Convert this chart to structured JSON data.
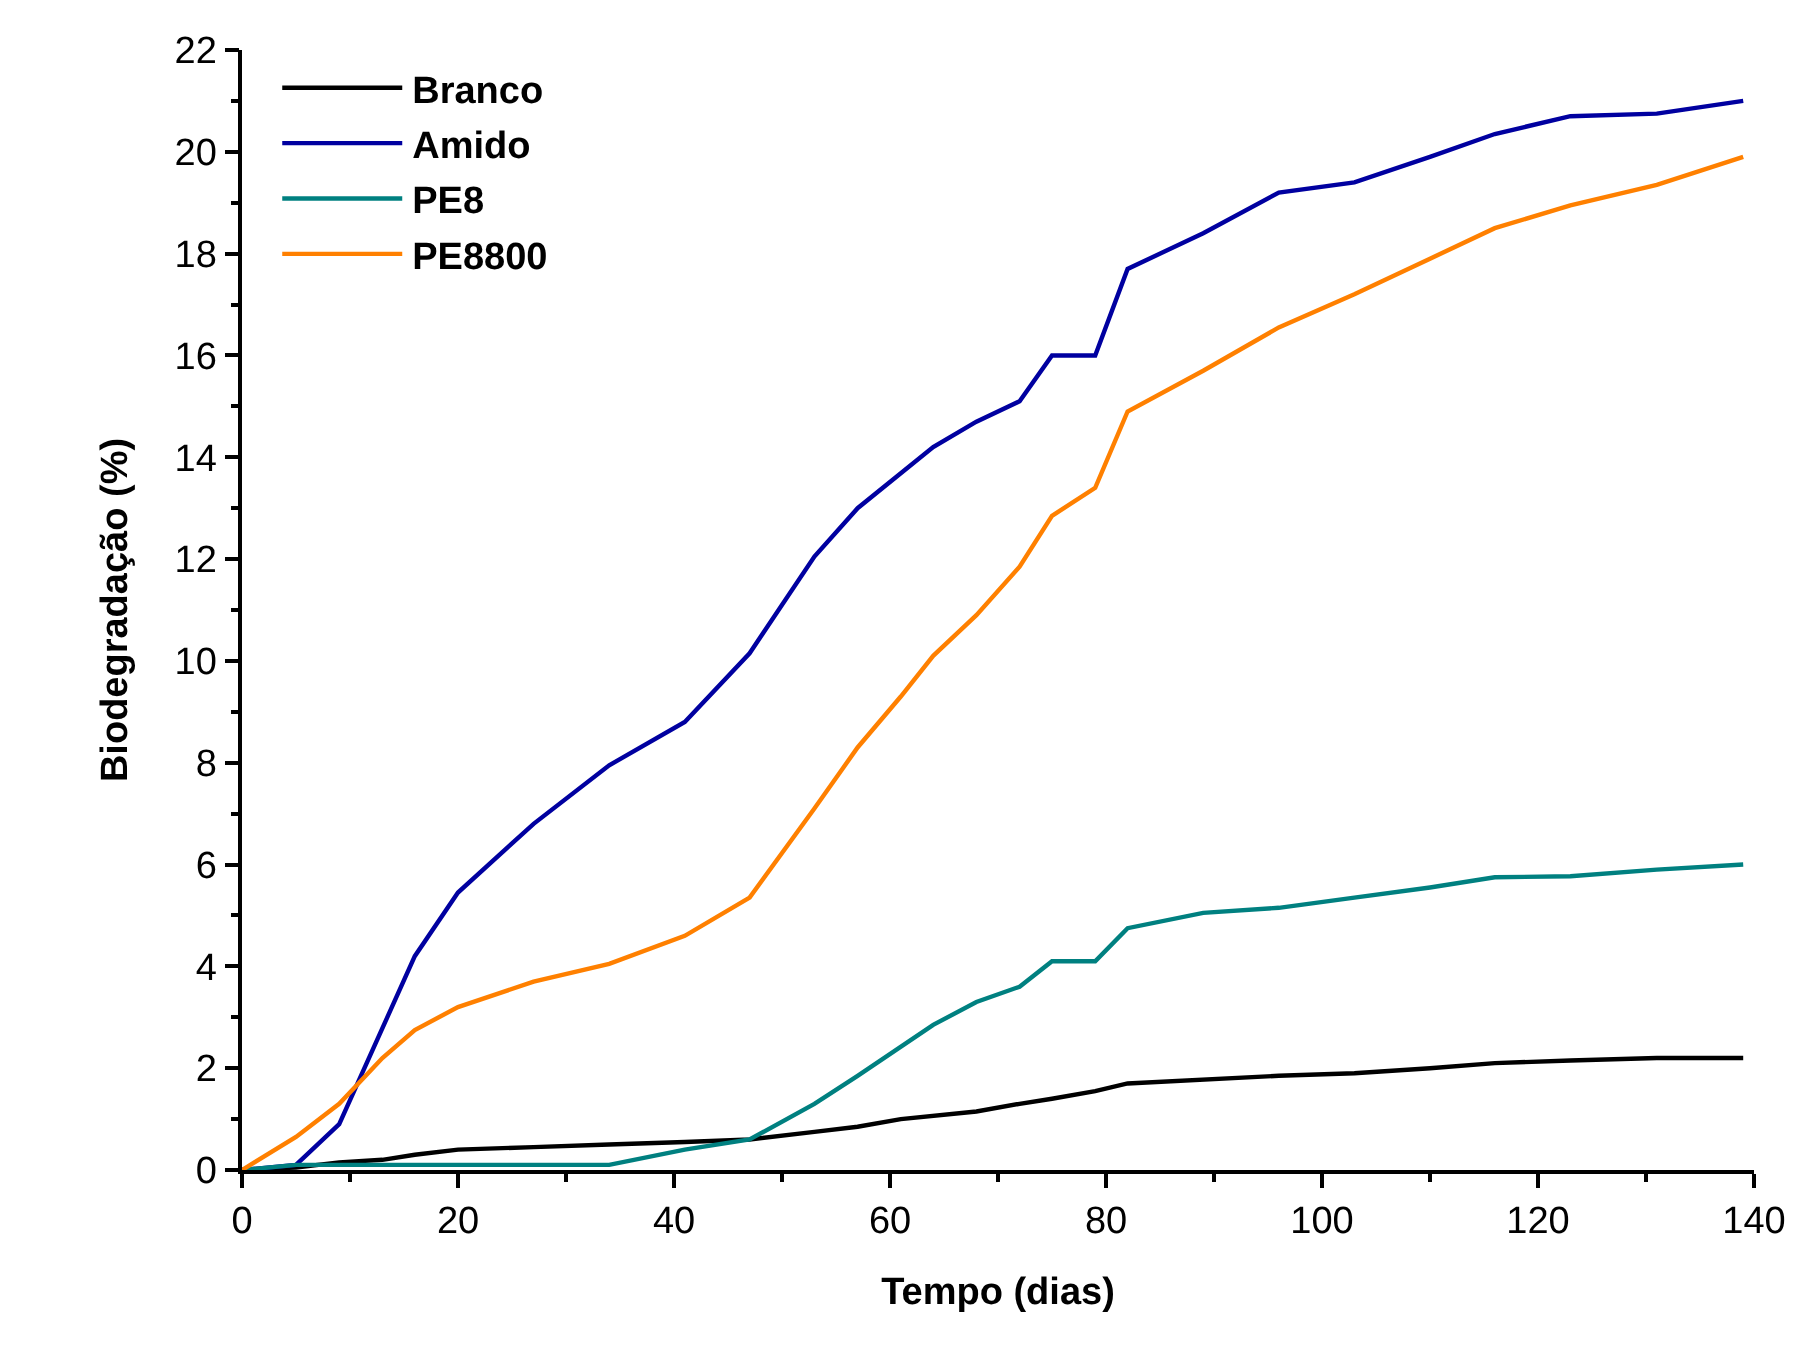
{
  "chart_data": {
    "type": "line",
    "xlabel": "Tempo (dias)",
    "ylabel": "Biodegradação (%)",
    "xlim": [
      0,
      140
    ],
    "ylim": [
      0,
      22
    ],
    "xticks": [
      0,
      {
        "value": 10,
        "label": null
      },
      20,
      {
        "value": 30,
        "label": null
      },
      40,
      {
        "value": 50,
        "label": null
      },
      60,
      {
        "value": 70,
        "label": null
      },
      80,
      {
        "value": 90,
        "label": null
      },
      100,
      {
        "value": 110,
        "label": null
      },
      120,
      {
        "value": 130,
        "label": null
      },
      140
    ],
    "yticks": [
      0,
      {
        "value": 1,
        "label": null
      },
      2,
      {
        "value": 3,
        "label": null
      },
      4,
      {
        "value": 5,
        "label": null
      },
      6,
      {
        "value": 7,
        "label": null
      },
      8,
      {
        "value": 9,
        "label": null
      },
      10,
      {
        "value": 11,
        "label": null
      },
      12,
      {
        "value": 13,
        "label": null
      },
      14,
      {
        "value": 15,
        "label": null
      },
      16,
      {
        "value": 17,
        "label": null
      },
      18,
      {
        "value": 19,
        "label": null
      },
      20,
      {
        "value": 21,
        "label": null
      },
      22
    ],
    "grid": false,
    "legend": "top left",
    "marker": "none",
    "line_style": "solid",
    "series": [
      {
        "name": "Branco",
        "color": "#000000",
        "x": [
          0,
          5,
          9,
          13,
          16,
          20,
          27,
          34,
          41,
          47,
          53,
          57,
          61,
          68,
          72,
          75,
          79,
          82,
          96,
          103,
          110,
          116,
          123,
          131,
          139
        ],
        "values": [
          0,
          0.05,
          0.15,
          0.2,
          0.3,
          0.4,
          0.45,
          0.5,
          0.55,
          0.6,
          0.75,
          0.85,
          1.0,
          1.15,
          1.3,
          1.4,
          1.55,
          1.7,
          1.85,
          1.9,
          2.0,
          2.1,
          2.15,
          2.2,
          2.2
        ]
      },
      {
        "name": "Amido",
        "color": "#0000a0",
        "x": [
          0,
          5,
          9,
          16,
          20,
          27,
          34,
          41,
          47,
          53,
          57,
          64,
          68,
          72,
          75,
          79,
          82,
          89,
          96,
          103,
          110,
          116,
          123,
          131,
          139
        ],
        "values": [
          0,
          0.1,
          0.9,
          4.2,
          5.45,
          6.8,
          7.95,
          8.8,
          10.15,
          12.05,
          13.0,
          14.2,
          14.7,
          15.1,
          16.0,
          16.0,
          17.7,
          18.4,
          19.2,
          19.4,
          19.9,
          20.35,
          20.7,
          20.75,
          21.0
        ]
      },
      {
        "name": "PE8",
        "color": "#008080",
        "x": [
          0,
          5,
          20,
          34,
          41,
          47,
          53,
          57,
          64,
          68,
          72,
          75,
          79,
          82,
          89,
          96,
          103,
          110,
          116,
          123,
          131,
          139
        ],
        "values": [
          0,
          0.1,
          0.1,
          0.1,
          0.4,
          0.6,
          1.3,
          1.85,
          2.85,
          3.3,
          3.6,
          4.1,
          4.1,
          4.75,
          5.05,
          5.15,
          5.35,
          5.55,
          5.75,
          5.77,
          5.9,
          6.0
        ]
      },
      {
        "name": "PE8800",
        "color": "#ff8000",
        "x": [
          0,
          5,
          9,
          13,
          16,
          20,
          27,
          34,
          41,
          47,
          53,
          57,
          61,
          64,
          68,
          72,
          75,
          79,
          82,
          89,
          96,
          103,
          110,
          116,
          123,
          131,
          139
        ],
        "values": [
          0,
          0.65,
          1.3,
          2.2,
          2.75,
          3.2,
          3.7,
          4.05,
          4.6,
          5.35,
          7.1,
          8.3,
          9.3,
          10.1,
          10.9,
          11.85,
          12.85,
          13.4,
          14.9,
          15.7,
          16.55,
          17.2,
          17.9,
          18.5,
          18.95,
          19.35,
          19.9
        ]
      }
    ]
  }
}
